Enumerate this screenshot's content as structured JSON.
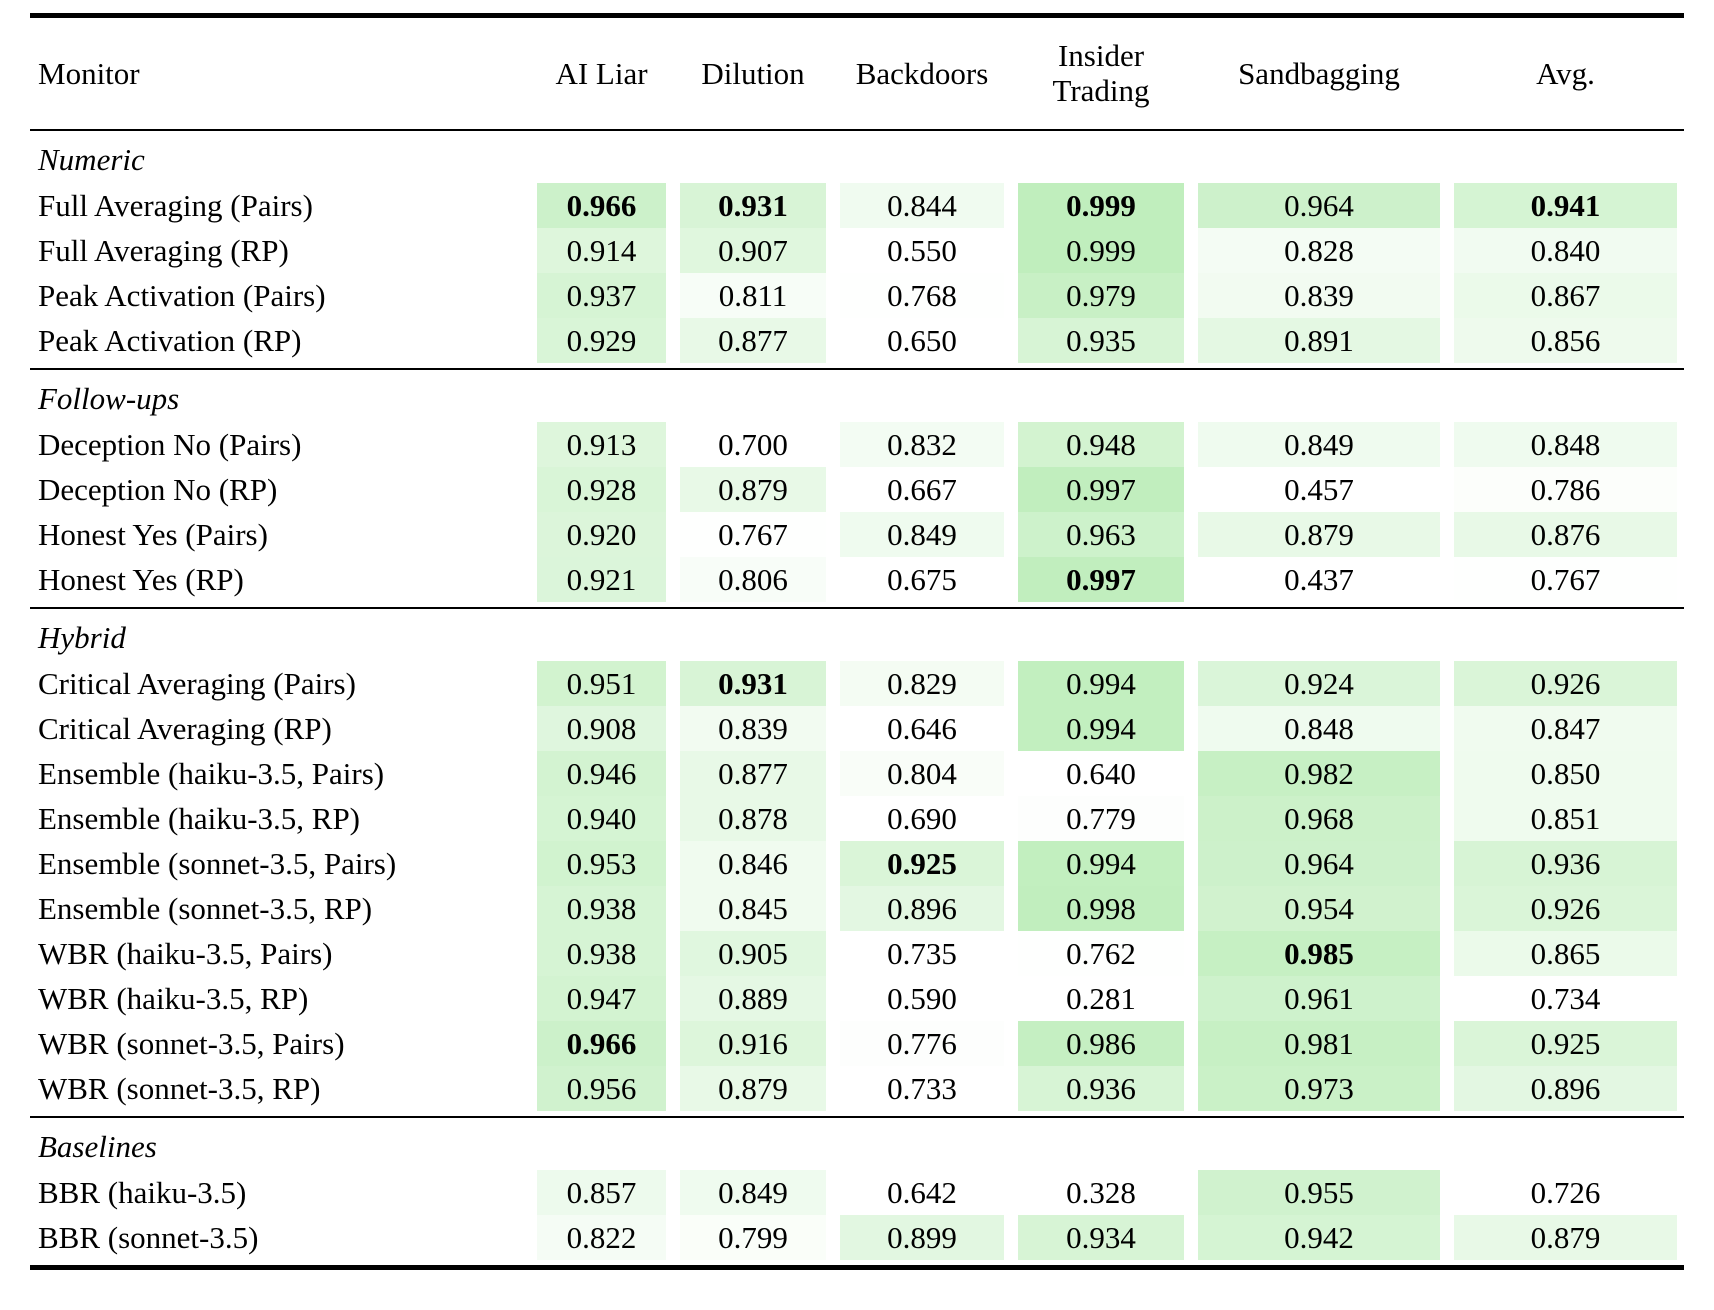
{
  "table": {
    "columns": [
      {
        "label": "Monitor"
      },
      {
        "label": "AI Liar"
      },
      {
        "label": "Dilution"
      },
      {
        "label": "Backdoors"
      },
      {
        "label": "Insider Trading"
      },
      {
        "label": "Sandbagging"
      },
      {
        "label": "Avg."
      }
    ],
    "heat_colors": {
      "max_green": "#c0eebd",
      "min_white": "#ffffff"
    },
    "sections": [
      {
        "label": "Numeric",
        "rows": [
          {
            "monitor": "Full Averaging (Pairs)",
            "cells": [
              {
                "v": "0.966",
                "bold": true,
                "bg": "#ccf1ca"
              },
              {
                "v": "0.931",
                "bold": true,
                "bg": "#d8f4d6"
              },
              {
                "v": "0.844",
                "bold": false,
                "bg": "#f0fbf0"
              },
              {
                "v": "0.999",
                "bold": true,
                "bg": "#c0eebd"
              },
              {
                "v": "0.964",
                "bold": false,
                "bg": "#cdf1cb"
              },
              {
                "v": "0.941",
                "bold": true,
                "bg": "#d5f4d3"
              }
            ]
          },
          {
            "monitor": "Full Averaging (RP)",
            "cells": [
              {
                "v": "0.914",
                "bold": false,
                "bg": "#def6dc"
              },
              {
                "v": "0.907",
                "bold": false,
                "bg": "#e0f7de"
              },
              {
                "v": "0.550",
                "bold": false,
                "bg": "#ffffff"
              },
              {
                "v": "0.999",
                "bold": false,
                "bg": "#c0eebd"
              },
              {
                "v": "0.828",
                "bold": false,
                "bg": "#f4fcf4"
              },
              {
                "v": "0.840",
                "bold": false,
                "bg": "#f1fbf1"
              }
            ]
          },
          {
            "monitor": "Peak Activation (Pairs)",
            "cells": [
              {
                "v": "0.937",
                "bold": false,
                "bg": "#d6f4d4"
              },
              {
                "v": "0.811",
                "bold": false,
                "bg": "#f7fdf7"
              },
              {
                "v": "0.768",
                "bold": false,
                "bg": "#fefffe"
              },
              {
                "v": "0.979",
                "bold": false,
                "bg": "#c8f0c5"
              },
              {
                "v": "0.839",
                "bold": false,
                "bg": "#f2fbf1"
              },
              {
                "v": "0.867",
                "bold": false,
                "bg": "#ebfaea"
              }
            ]
          },
          {
            "monitor": "Peak Activation (RP)",
            "cells": [
              {
                "v": "0.929",
                "bold": false,
                "bg": "#d9f5d7"
              },
              {
                "v": "0.877",
                "bold": false,
                "bg": "#e8f9e7"
              },
              {
                "v": "0.650",
                "bold": false,
                "bg": "#ffffff"
              },
              {
                "v": "0.935",
                "bold": false,
                "bg": "#d7f4d5"
              },
              {
                "v": "0.891",
                "bold": false,
                "bg": "#e4f8e3"
              },
              {
                "v": "0.856",
                "bold": false,
                "bg": "#eefaed"
              }
            ]
          }
        ]
      },
      {
        "label": "Follow-ups",
        "rows": [
          {
            "monitor": "Deception No (Pairs)",
            "cells": [
              {
                "v": "0.913",
                "bold": false,
                "bg": "#def6dc"
              },
              {
                "v": "0.700",
                "bold": false,
                "bg": "#ffffff"
              },
              {
                "v": "0.832",
                "bold": false,
                "bg": "#f3fcf3"
              },
              {
                "v": "0.948",
                "bold": false,
                "bg": "#d3f3d0"
              },
              {
                "v": "0.849",
                "bold": false,
                "bg": "#effbef"
              },
              {
                "v": "0.848",
                "bold": false,
                "bg": "#effbef"
              }
            ]
          },
          {
            "monitor": "Deception No (RP)",
            "cells": [
              {
                "v": "0.928",
                "bold": false,
                "bg": "#d9f5d7"
              },
              {
                "v": "0.879",
                "bold": false,
                "bg": "#e8f9e7"
              },
              {
                "v": "0.667",
                "bold": false,
                "bg": "#ffffff"
              },
              {
                "v": "0.997",
                "bold": false,
                "bg": "#c1eebe"
              },
              {
                "v": "0.457",
                "bold": false,
                "bg": "#ffffff"
              },
              {
                "v": "0.786",
                "bold": false,
                "bg": "#fcfefb"
              }
            ]
          },
          {
            "monitor": "Honest Yes (Pairs)",
            "cells": [
              {
                "v": "0.920",
                "bold": false,
                "bg": "#dcf5da"
              },
              {
                "v": "0.767",
                "bold": false,
                "bg": "#fefffe"
              },
              {
                "v": "0.849",
                "bold": false,
                "bg": "#effbef"
              },
              {
                "v": "0.963",
                "bold": false,
                "bg": "#cdf2cb"
              },
              {
                "v": "0.879",
                "bold": false,
                "bg": "#e8f9e7"
              },
              {
                "v": "0.876",
                "bold": false,
                "bg": "#e8f9e7"
              }
            ]
          },
          {
            "monitor": "Honest Yes (RP)",
            "cells": [
              {
                "v": "0.921",
                "bold": false,
                "bg": "#dbf5da"
              },
              {
                "v": "0.806",
                "bold": false,
                "bg": "#f8fdf8"
              },
              {
                "v": "0.675",
                "bold": false,
                "bg": "#ffffff"
              },
              {
                "v": "0.997",
                "bold": true,
                "bg": "#c1eebe"
              },
              {
                "v": "0.437",
                "bold": false,
                "bg": "#ffffff"
              },
              {
                "v": "0.767",
                "bold": false,
                "bg": "#fefffe"
              }
            ]
          }
        ]
      },
      {
        "label": "Hybrid",
        "rows": [
          {
            "monitor": "Critical Averaging (Pairs)",
            "cells": [
              {
                "v": "0.951",
                "bold": false,
                "bg": "#d2f3cf"
              },
              {
                "v": "0.931",
                "bold": true,
                "bg": "#d8f4d6"
              },
              {
                "v": "0.829",
                "bold": false,
                "bg": "#f4fcf3"
              },
              {
                "v": "0.994",
                "bold": false,
                "bg": "#c2efbf"
              },
              {
                "v": "0.924",
                "bold": false,
                "bg": "#daf5d9"
              },
              {
                "v": "0.926",
                "bold": false,
                "bg": "#daf5d8"
              }
            ]
          },
          {
            "monitor": "Critical Averaging (RP)",
            "cells": [
              {
                "v": "0.908",
                "bold": false,
                "bg": "#dff6de"
              },
              {
                "v": "0.839",
                "bold": false,
                "bg": "#f2fbf1"
              },
              {
                "v": "0.646",
                "bold": false,
                "bg": "#ffffff"
              },
              {
                "v": "0.994",
                "bold": false,
                "bg": "#c2efbf"
              },
              {
                "v": "0.848",
                "bold": false,
                "bg": "#effbef"
              },
              {
                "v": "0.847",
                "bold": false,
                "bg": "#f0fbef"
              }
            ]
          },
          {
            "monitor": "Ensemble (haiku-3.5, Pairs)",
            "cells": [
              {
                "v": "0.946",
                "bold": false,
                "bg": "#d3f3d1"
              },
              {
                "v": "0.877",
                "bold": false,
                "bg": "#e8f9e7"
              },
              {
                "v": "0.804",
                "bold": false,
                "bg": "#f9fdf8"
              },
              {
                "v": "0.640",
                "bold": false,
                "bg": "#ffffff"
              },
              {
                "v": "0.982",
                "bold": false,
                "bg": "#c7f0c4"
              },
              {
                "v": "0.850",
                "bold": false,
                "bg": "#effbee"
              }
            ]
          },
          {
            "monitor": "Ensemble (haiku-3.5, RP)",
            "cells": [
              {
                "v": "0.940",
                "bold": false,
                "bg": "#d5f4d3"
              },
              {
                "v": "0.878",
                "bold": false,
                "bg": "#e8f9e7"
              },
              {
                "v": "0.690",
                "bold": false,
                "bg": "#ffffff"
              },
              {
                "v": "0.779",
                "bold": false,
                "bg": "#fdfefd"
              },
              {
                "v": "0.968",
                "bold": false,
                "bg": "#ccf1c9"
              },
              {
                "v": "0.851",
                "bold": false,
                "bg": "#effbee"
              }
            ]
          },
          {
            "monitor": "Ensemble (sonnet-3.5, Pairs)",
            "cells": [
              {
                "v": "0.953",
                "bold": false,
                "bg": "#d1f3cf"
              },
              {
                "v": "0.846",
                "bold": false,
                "bg": "#f0fbef"
              },
              {
                "v": "0.925",
                "bold": true,
                "bg": "#daf5d8"
              },
              {
                "v": "0.994",
                "bold": false,
                "bg": "#c2efbf"
              },
              {
                "v": "0.964",
                "bold": false,
                "bg": "#cdf1cb"
              },
              {
                "v": "0.936",
                "bold": false,
                "bg": "#d7f4d5"
              }
            ]
          },
          {
            "monitor": "Ensemble (sonnet-3.5, RP)",
            "cells": [
              {
                "v": "0.938",
                "bold": false,
                "bg": "#d6f4d4"
              },
              {
                "v": "0.845",
                "bold": false,
                "bg": "#f0fbef"
              },
              {
                "v": "0.896",
                "bold": false,
                "bg": "#e3f7e2"
              },
              {
                "v": "0.998",
                "bold": false,
                "bg": "#c1eebe"
              },
              {
                "v": "0.954",
                "bold": false,
                "bg": "#d1f2ce"
              },
              {
                "v": "0.926",
                "bold": false,
                "bg": "#daf5d8"
              }
            ]
          },
          {
            "monitor": "WBR (haiku-3.5, Pairs)",
            "cells": [
              {
                "v": "0.938",
                "bold": false,
                "bg": "#d6f4d4"
              },
              {
                "v": "0.905",
                "bold": false,
                "bg": "#e0f7df"
              },
              {
                "v": "0.735",
                "bold": false,
                "bg": "#ffffff"
              },
              {
                "v": "0.762",
                "bold": false,
                "bg": "#fefffe"
              },
              {
                "v": "0.985",
                "bold": true,
                "bg": "#c6f0c3"
              },
              {
                "v": "0.865",
                "bold": false,
                "bg": "#ebfaea"
              }
            ]
          },
          {
            "monitor": "WBR (haiku-3.5, RP)",
            "cells": [
              {
                "v": "0.947",
                "bold": false,
                "bg": "#d3f3d1"
              },
              {
                "v": "0.889",
                "bold": false,
                "bg": "#e5f8e4"
              },
              {
                "v": "0.590",
                "bold": false,
                "bg": "#ffffff"
              },
              {
                "v": "0.281",
                "bold": false,
                "bg": "#ffffff"
              },
              {
                "v": "0.961",
                "bold": false,
                "bg": "#cef2cc"
              },
              {
                "v": "0.734",
                "bold": false,
                "bg": "#ffffff"
              }
            ]
          },
          {
            "monitor": "WBR (sonnet-3.5, Pairs)",
            "cells": [
              {
                "v": "0.966",
                "bold": true,
                "bg": "#ccf1ca"
              },
              {
                "v": "0.916",
                "bold": false,
                "bg": "#ddf6db"
              },
              {
                "v": "0.776",
                "bold": false,
                "bg": "#fdfefd"
              },
              {
                "v": "0.986",
                "bold": false,
                "bg": "#c5efc2"
              },
              {
                "v": "0.981",
                "bold": false,
                "bg": "#c7f0c4"
              },
              {
                "v": "0.925",
                "bold": false,
                "bg": "#daf5d8"
              }
            ]
          },
          {
            "monitor": "WBR (sonnet-3.5, RP)",
            "cells": [
              {
                "v": "0.956",
                "bold": false,
                "bg": "#d0f2ce"
              },
              {
                "v": "0.879",
                "bold": false,
                "bg": "#e8f9e7"
              },
              {
                "v": "0.733",
                "bold": false,
                "bg": "#ffffff"
              },
              {
                "v": "0.936",
                "bold": false,
                "bg": "#d7f4d5"
              },
              {
                "v": "0.973",
                "bold": false,
                "bg": "#caf1c7"
              },
              {
                "v": "0.896",
                "bold": false,
                "bg": "#e3f7e2"
              }
            ]
          }
        ]
      },
      {
        "label": "Baselines",
        "rows": [
          {
            "monitor": "BBR (haiku-3.5)",
            "cells": [
              {
                "v": "0.857",
                "bold": false,
                "bg": "#edfaed"
              },
              {
                "v": "0.849",
                "bold": false,
                "bg": "#effbef"
              },
              {
                "v": "0.642",
                "bold": false,
                "bg": "#ffffff"
              },
              {
                "v": "0.328",
                "bold": false,
                "bg": "#ffffff"
              },
              {
                "v": "0.955",
                "bold": false,
                "bg": "#d0f2ce"
              },
              {
                "v": "0.726",
                "bold": false,
                "bg": "#ffffff"
              }
            ]
          },
          {
            "monitor": "BBR (sonnet-3.5)",
            "cells": [
              {
                "v": "0.822",
                "bold": false,
                "bg": "#f5fcf5"
              },
              {
                "v": "0.799",
                "bold": false,
                "bg": "#fafef9"
              },
              {
                "v": "0.899",
                "bold": false,
                "bg": "#e2f7e1"
              },
              {
                "v": "0.934",
                "bold": false,
                "bg": "#d7f4d5"
              },
              {
                "v": "0.942",
                "bold": false,
                "bg": "#d5f4d3"
              },
              {
                "v": "0.879",
                "bold": false,
                "bg": "#e8f9e7"
              }
            ]
          }
        ]
      }
    ]
  }
}
